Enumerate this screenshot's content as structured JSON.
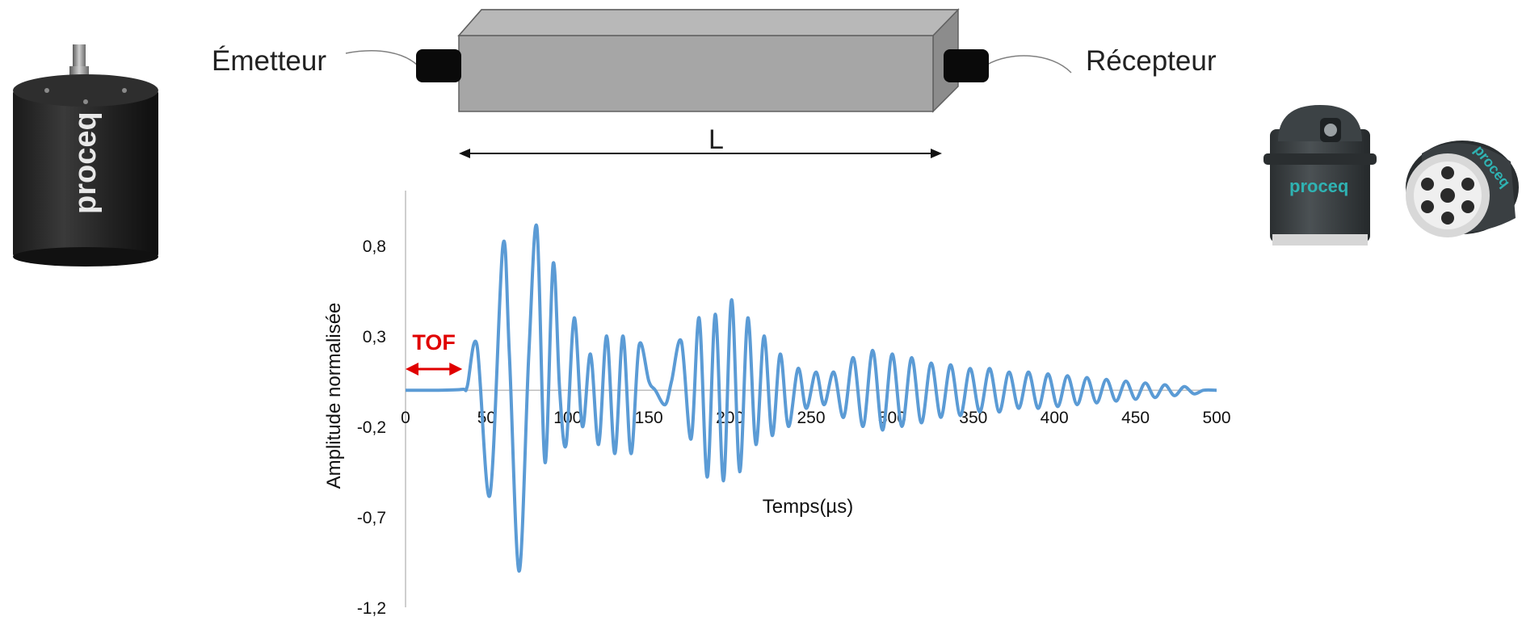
{
  "diagram": {
    "emitter_label": "Émetteur",
    "receiver_label": "Récepteur",
    "length_label": "L",
    "brand_label": "proceq",
    "colors": {
      "beam_front": "#a6a6a6",
      "beam_top": "#b8b8b8",
      "beam_side": "#8c8c8c",
      "beam_edge": "#606060",
      "transducer": "#0a0a0a",
      "cable": "#808080",
      "brand_teal": "#2fb3b3"
    }
  },
  "chart_data": {
    "type": "line",
    "title": "",
    "xlabel": "Temps(µs)",
    "ylabel": "Amplitude normalisée",
    "xlim": [
      0,
      500
    ],
    "ylim": [
      -1.2,
      1.0
    ],
    "x_ticks": [
      "0",
      "50",
      "100",
      "150",
      "200",
      "250",
      "300",
      "350",
      "400",
      "450",
      "500"
    ],
    "y_ticks": [
      "0,8",
      "0,3",
      "-0,2",
      "-0,7",
      "-1,2"
    ],
    "y_tick_values": [
      0.8,
      0.3,
      -0.2,
      -0.7,
      -1.2
    ],
    "series_color": "#5b9bd5",
    "annotation": {
      "label": "TOF",
      "x_start": 0,
      "x_end": 35,
      "color": "#e00000"
    },
    "series": [
      {
        "x": [
          0,
          20,
          35,
          38,
          44,
          52,
          60,
          64,
          70,
          76,
          81,
          86,
          91,
          95,
          99,
          104,
          109,
          114,
          119,
          124,
          129,
          134,
          139,
          144,
          150,
          154,
          160,
          164,
          170,
          176,
          181,
          186,
          191,
          196,
          201,
          206,
          211,
          216,
          221,
          226,
          231,
          236,
          242,
          247,
          253,
          258,
          264,
          270,
          276,
          282,
          288,
          294,
          300,
          306,
          312,
          318,
          324,
          330,
          336,
          342,
          348,
          354,
          360,
          366,
          372,
          378,
          384,
          390,
          396,
          402,
          408,
          414,
          420,
          426,
          432,
          438,
          444,
          450,
          456,
          462,
          468,
          474,
          480,
          486,
          492,
          500
        ],
        "y": [
          0,
          0,
          0.005,
          0.02,
          0.25,
          -0.58,
          0.8,
          0.2,
          -1.0,
          0.2,
          0.9,
          -0.4,
          0.7,
          0.0,
          -0.3,
          0.4,
          -0.2,
          0.2,
          -0.3,
          0.3,
          -0.35,
          0.3,
          -0.35,
          0.25,
          0.05,
          0.0,
          -0.08,
          0.05,
          0.27,
          -0.27,
          0.4,
          -0.48,
          0.42,
          -0.5,
          0.5,
          -0.45,
          0.4,
          -0.3,
          0.3,
          -0.25,
          0.2,
          -0.2,
          0.12,
          -0.1,
          0.1,
          -0.08,
          0.1,
          -0.15,
          0.18,
          -0.2,
          0.22,
          -0.22,
          0.2,
          -0.2,
          0.18,
          -0.18,
          0.15,
          -0.15,
          0.14,
          -0.14,
          0.12,
          -0.12,
          0.12,
          -0.12,
          0.1,
          -0.1,
          0.1,
          -0.1,
          0.09,
          -0.09,
          0.08,
          -0.08,
          0.07,
          -0.07,
          0.06,
          -0.06,
          0.05,
          -0.05,
          0.04,
          -0.04,
          0.03,
          -0.03,
          0.02,
          -0.02,
          0.0,
          0.0
        ]
      }
    ]
  }
}
